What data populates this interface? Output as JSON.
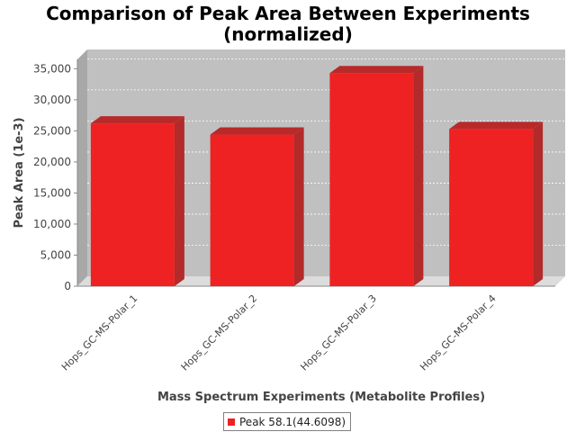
{
  "chart_data": {
    "type": "bar",
    "title": "Comparison of Peak Area Between Experiments",
    "subtitle": "(normalized)",
    "xlabel": "Mass Spectrum Experiments (Metabolite Profiles)",
    "ylabel": "Peak Area (1e-3)",
    "categories": [
      "Hops_GC-MS-Polar_1",
      "Hops_GC-MS-Polar_2",
      "Hops_GC-MS-Polar_3",
      "Hops_GC-MS-Polar_4"
    ],
    "series": [
      {
        "name": "Peak 58.1(44.6098)",
        "values": [
          26200,
          24400,
          34300,
          25300
        ]
      }
    ],
    "ylim": [
      0,
      36500
    ],
    "yticks": [
      0,
      5000,
      10000,
      15000,
      20000,
      25000,
      30000,
      35000
    ],
    "ytick_labels": [
      "0",
      "5,000",
      "10,000",
      "15,000",
      "20,000",
      "25,000",
      "30,000",
      "35,000"
    ],
    "grid": true,
    "legend_position": "bottom-center",
    "colors": {
      "bar_front": "#ee2222",
      "bar_top": "#b82a2a",
      "bar_side": "#b22a2a",
      "plot_background": "#c0c0c0",
      "plot_floor": "#dcdcdc"
    }
  }
}
